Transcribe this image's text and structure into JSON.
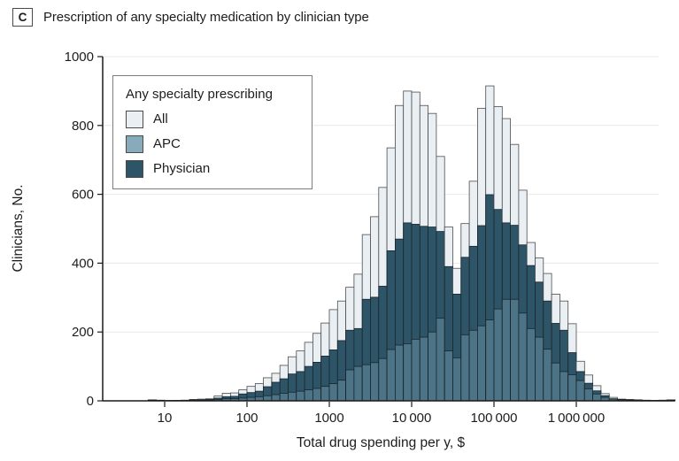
{
  "panel": {
    "label": "C",
    "title": "Prescription of any specialty medication by clinician type"
  },
  "legend": {
    "title": "Any specialty prescribing",
    "entries": [
      {
        "label": "All",
        "color": "#e9eff3"
      },
      {
        "label": "APC",
        "color": "#87abba"
      },
      {
        "label": "Physician",
        "color": "#2e5467"
      }
    ]
  },
  "colors": {
    "all_fill": "#e9eff3",
    "all_stroke": "#4d4d4d",
    "physician_fill": "#2e5467",
    "apc_overlap_fill": "#4c7386",
    "dark_stroke": "#18242c",
    "gridline": "#e8e8e8",
    "axis": "#1a1a1a",
    "text": "#1d1d1d"
  },
  "chart_data": {
    "type": "bar",
    "subtype": "overlaid-histogram-log-x",
    "title": "Prescription of any specialty medication by clinician type",
    "xlabel": "Total drug spending per y, $",
    "ylabel": "Clinicians, No.",
    "note": "Bars are overlaid, not stacked: All behind, Physician in middle, APC in front (APC visible as band at bar bottoms).",
    "x_axis": {
      "scale": "log10",
      "ticks": [
        {
          "v": 10,
          "label": "10"
        },
        {
          "v": 100,
          "label": "100"
        },
        {
          "v": 1000,
          "label": "1000"
        },
        {
          "v": 10000,
          "label": "10 000"
        },
        {
          "v": 100000,
          "label": "100 000"
        },
        {
          "v": 1000000,
          "label": "1 000 000"
        }
      ]
    },
    "y_axis": {
      "range": [
        0,
        1000
      ],
      "ticks": [
        0,
        200,
        400,
        600,
        800,
        1000
      ],
      "gridlines": true
    },
    "legend_position": "top-left-inside",
    "bins": {
      "columns": [
        "spending_bin_start_usd",
        "all",
        "apc",
        "physician"
      ],
      "rows": [
        [
          6.3,
          3,
          1,
          2
        ],
        [
          7.9,
          2,
          1,
          1
        ],
        [
          10,
          1,
          0,
          1
        ],
        [
          12.6,
          1,
          1,
          1
        ],
        [
          15.8,
          2,
          1,
          1
        ],
        [
          20,
          4,
          1,
          3
        ],
        [
          25.1,
          5,
          1,
          3
        ],
        [
          31.6,
          6,
          2,
          4
        ],
        [
          39.8,
          14,
          4,
          8
        ],
        [
          50.1,
          22,
          6,
          12
        ],
        [
          63.1,
          23,
          6,
          13
        ],
        [
          79.4,
          32,
          8,
          20
        ],
        [
          100,
          42,
          10,
          24
        ],
        [
          126,
          50,
          12,
          28
        ],
        [
          158,
          67,
          15,
          41
        ],
        [
          200,
          80,
          18,
          54
        ],
        [
          251,
          103,
          22,
          64
        ],
        [
          316,
          128,
          25,
          78
        ],
        [
          398,
          145,
          28,
          85
        ],
        [
          501,
          170,
          32,
          100
        ],
        [
          631,
          196,
          36,
          112
        ],
        [
          794,
          226,
          42,
          130
        ],
        [
          1000,
          265,
          50,
          148
        ],
        [
          1259,
          290,
          60,
          175
        ],
        [
          1585,
          330,
          90,
          205
        ],
        [
          1995,
          368,
          100,
          210
        ],
        [
          2512,
          483,
          105,
          295
        ],
        [
          3162,
          535,
          111,
          301
        ],
        [
          3981,
          620,
          123,
          333
        ],
        [
          5012,
          735,
          149,
          436
        ],
        [
          6310,
          858,
          162,
          470
        ],
        [
          7943,
          900,
          166,
          517
        ],
        [
          10000,
          897,
          179,
          513
        ],
        [
          12589,
          858,
          185,
          507
        ],
        [
          15849,
          835,
          200,
          505
        ],
        [
          19953,
          710,
          240,
          492
        ],
        [
          25119,
          505,
          145,
          390
        ],
        [
          31623,
          385,
          125,
          310
        ],
        [
          39811,
          515,
          192,
          417
        ],
        [
          50119,
          638,
          205,
          449
        ],
        [
          63096,
          850,
          218,
          509
        ],
        [
          79433,
          915,
          235,
          599
        ],
        [
          100000,
          855,
          267,
          556
        ],
        [
          125893,
          820,
          295,
          517
        ],
        [
          158489,
          745,
          295,
          510
        ],
        [
          199526,
          612,
          255,
          453
        ],
        [
          251189,
          460,
          210,
          393
        ],
        [
          316228,
          415,
          185,
          345
        ],
        [
          398107,
          370,
          150,
          290
        ],
        [
          501187,
          310,
          110,
          225
        ],
        [
          630957,
          290,
          85,
          205
        ],
        [
          794328,
          224,
          76,
          140
        ],
        [
          1000000,
          115,
          59,
          85
        ],
        [
          1258925,
          75,
          35,
          51
        ],
        [
          1584893,
          44,
          20,
          29
        ],
        [
          1995262,
          21,
          10,
          15
        ],
        [
          2511886,
          10,
          5,
          6
        ],
        [
          3162278,
          5,
          3,
          4
        ],
        [
          3981072,
          4,
          2,
          3
        ],
        [
          5011872,
          3,
          2,
          2
        ],
        [
          6309573,
          2,
          1,
          1
        ],
        [
          7943282,
          1,
          1,
          1
        ],
        [
          10000000,
          2,
          1,
          1
        ],
        [
          12589254,
          3,
          1,
          2
        ]
      ]
    }
  }
}
